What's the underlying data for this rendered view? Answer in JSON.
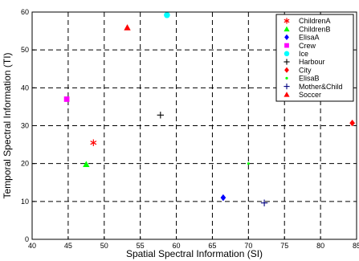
{
  "chart_data": {
    "type": "scatter",
    "title": "",
    "xlabel": "Spatial Spectral Information (SI)",
    "ylabel": "Temporal Spectral Information (TI)",
    "xlim": [
      40,
      85
    ],
    "ylim": [
      0,
      60
    ],
    "xticks": [
      40,
      45,
      50,
      55,
      60,
      65,
      70,
      75,
      80,
      85
    ],
    "yticks": [
      0,
      10,
      20,
      30,
      40,
      50,
      60
    ],
    "grid": true,
    "grid_style": "dashed",
    "legend_position": "top-right",
    "series": [
      {
        "name": "ChildrenA",
        "marker": "asterisk",
        "color": "#ff0000",
        "points": [
          [
            48.5,
            25.5
          ]
        ]
      },
      {
        "name": "ChildrenB",
        "marker": "triangle",
        "color": "#00ff00",
        "points": [
          [
            47.5,
            19.8
          ]
        ]
      },
      {
        "name": "ElisaA",
        "marker": "diamond",
        "color": "#0000ff",
        "points": [
          [
            66.5,
            11.0
          ]
        ]
      },
      {
        "name": "Crew",
        "marker": "square",
        "color": "#ff00ff",
        "points": [
          [
            44.8,
            37.0
          ]
        ]
      },
      {
        "name": "Ice",
        "marker": "circle",
        "color": "#00ffff",
        "points": [
          [
            58.7,
            59.2
          ]
        ]
      },
      {
        "name": "Harbour",
        "marker": "plus",
        "color": "#000000",
        "points": [
          [
            57.8,
            32.8
          ]
        ]
      },
      {
        "name": "City",
        "marker": "diamond",
        "color": "#ff0000",
        "points": [
          [
            84.4,
            30.7
          ]
        ]
      },
      {
        "name": "ElisaB",
        "marker": "dot",
        "color": "#00ff00",
        "points": [
          [
            70.0,
            20.0
          ]
        ]
      },
      {
        "name": "Mother&Child",
        "marker": "plus",
        "color": "#000080",
        "points": [
          [
            72.2,
            9.6
          ]
        ]
      },
      {
        "name": "Soccer",
        "marker": "triangle",
        "color": "#ff0000",
        "points": [
          [
            53.2,
            55.9
          ]
        ]
      }
    ]
  }
}
